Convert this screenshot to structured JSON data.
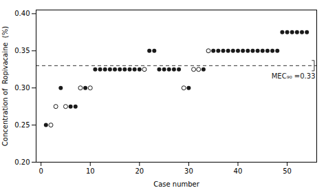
{
  "chart_data": {
    "type": "scatter",
    "title": "",
    "xlabel": "Case number",
    "ylabel": "Concentration of  Ropivacaine  (%)",
    "xlim": [
      -1,
      56
    ],
    "ylim": [
      0.2,
      0.405
    ],
    "xticks": [
      0,
      10,
      20,
      30,
      40,
      50
    ],
    "yticks": [
      {
        "value": 0.2,
        "label": "0.20"
      },
      0.25,
      {
        "value": 0.3,
        "label": "0.30"
      },
      0.35,
      {
        "value": 0.4,
        "label": "0.40"
      }
    ],
    "grid": false,
    "series": [
      {
        "marker": "filled_circle",
        "color": "#1a1a1a",
        "x": [
          1,
          4,
          6,
          7,
          9,
          11,
          12,
          13,
          14,
          15,
          16,
          17,
          18,
          19,
          20,
          22,
          23,
          24,
          25,
          26,
          27,
          28,
          30,
          33,
          35,
          36,
          37,
          38,
          39,
          40,
          41,
          42,
          43,
          44,
          45,
          46,
          47,
          48,
          49,
          50,
          51,
          52,
          53,
          54
        ],
        "values": [
          0.25,
          0.3,
          0.275,
          0.275,
          0.3,
          0.325,
          0.325,
          0.325,
          0.325,
          0.325,
          0.325,
          0.325,
          0.325,
          0.325,
          0.325,
          0.35,
          0.35,
          0.325,
          0.325,
          0.325,
          0.325,
          0.325,
          0.3,
          0.325,
          0.35,
          0.35,
          0.35,
          0.35,
          0.35,
          0.35,
          0.35,
          0.35,
          0.35,
          0.35,
          0.35,
          0.35,
          0.35,
          0.35,
          0.375,
          0.375,
          0.375,
          0.375,
          0.375,
          0.375
        ]
      },
      {
        "marker": "open_circle",
        "color": "#1a1a1a",
        "x": [
          2,
          3,
          5,
          8,
          10,
          21,
          29,
          31,
          32,
          34
        ],
        "values": [
          0.25,
          0.275,
          0.275,
          0.3,
          0.3,
          0.325,
          0.3,
          0.325,
          0.325,
          0.35
        ]
      }
    ],
    "annotations": [
      {
        "type": "hline",
        "y": 0.33,
        "line_style": "dashed",
        "color": "#333333",
        "bracket_half": 0.007,
        "text": "MEC₉₀ =0.33",
        "text_color": "#1a1a1a"
      }
    ]
  }
}
